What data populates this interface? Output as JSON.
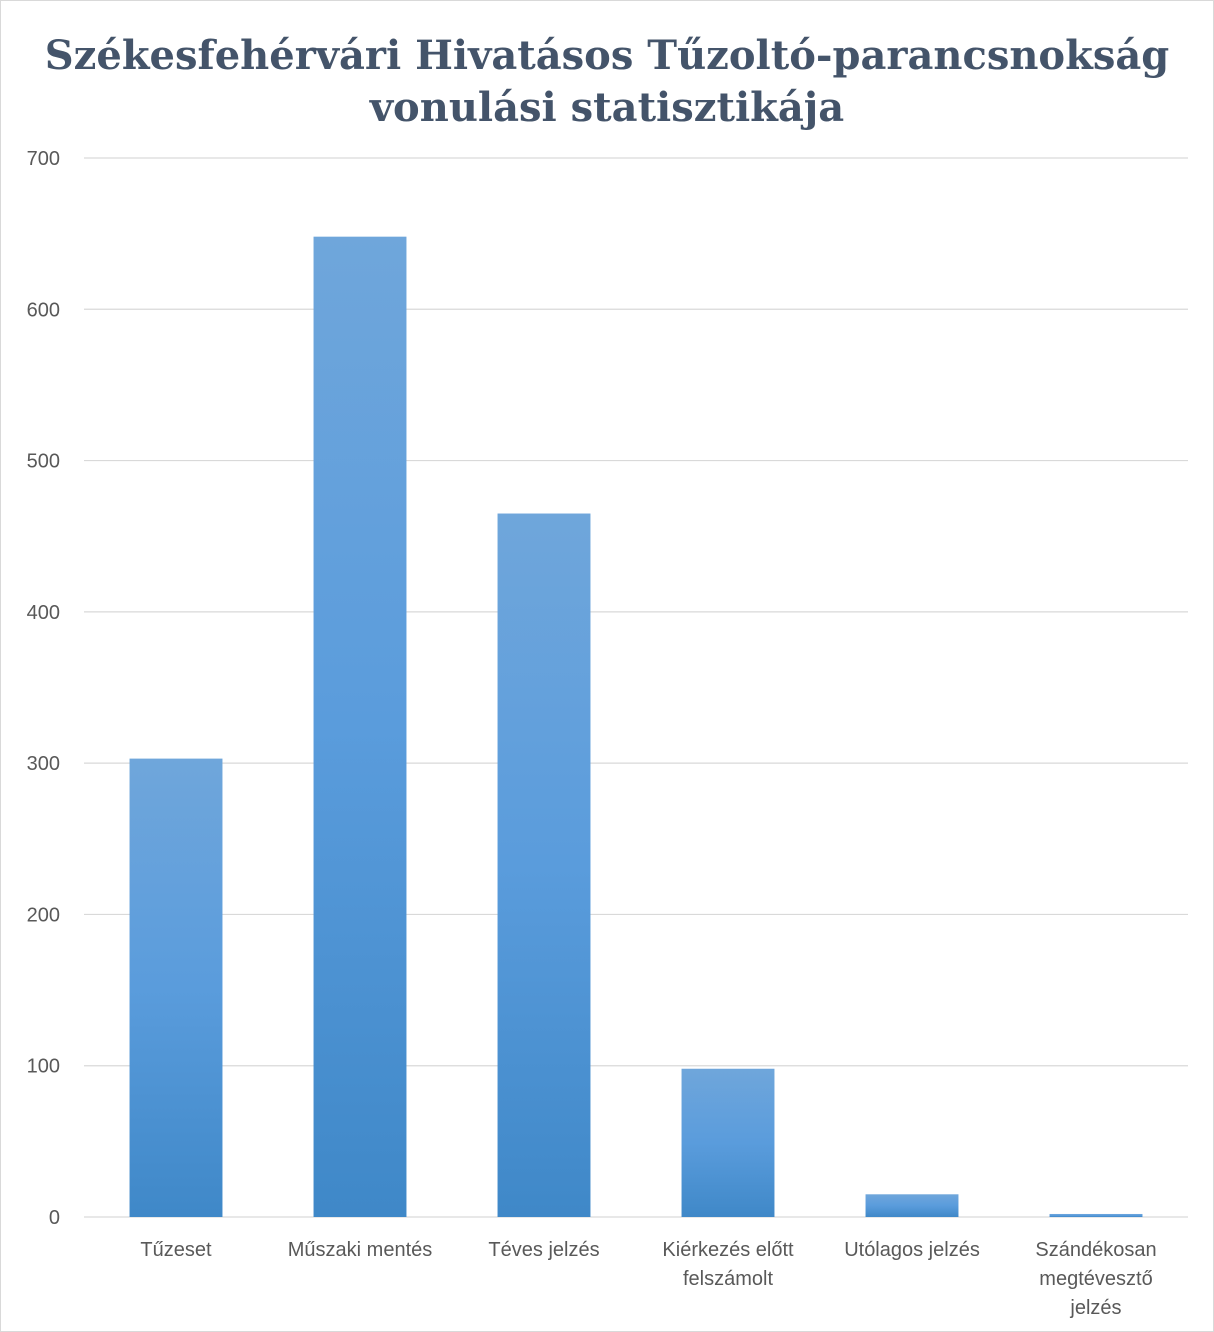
{
  "chart_data": {
    "type": "bar",
    "title_lines": [
      "Székesfehérvári Hivatásos Tűzoltó-parancsnokság",
      "vonulási statisztikája"
    ],
    "categories": [
      [
        "Tűzeset"
      ],
      [
        "Műszaki mentés"
      ],
      [
        "Téves jelzés"
      ],
      [
        "Kiérkezés előtt",
        "felszámolt"
      ],
      [
        "Utólagos jelzés"
      ],
      [
        "Szándékosan",
        "megtévesztő",
        "jelzés"
      ]
    ],
    "values": [
      303,
      648,
      465,
      98,
      15,
      2
    ],
    "ylim": [
      0,
      700
    ],
    "yticks": [
      0,
      100,
      200,
      300,
      400,
      500,
      600,
      700
    ],
    "grid": true,
    "legend": "none",
    "colors": {
      "bar_top": "#6fa6db",
      "bar_bottom": "#3f88c8",
      "grid": "#d9d9d9",
      "text": "#595959",
      "title": "#44546a"
    }
  }
}
